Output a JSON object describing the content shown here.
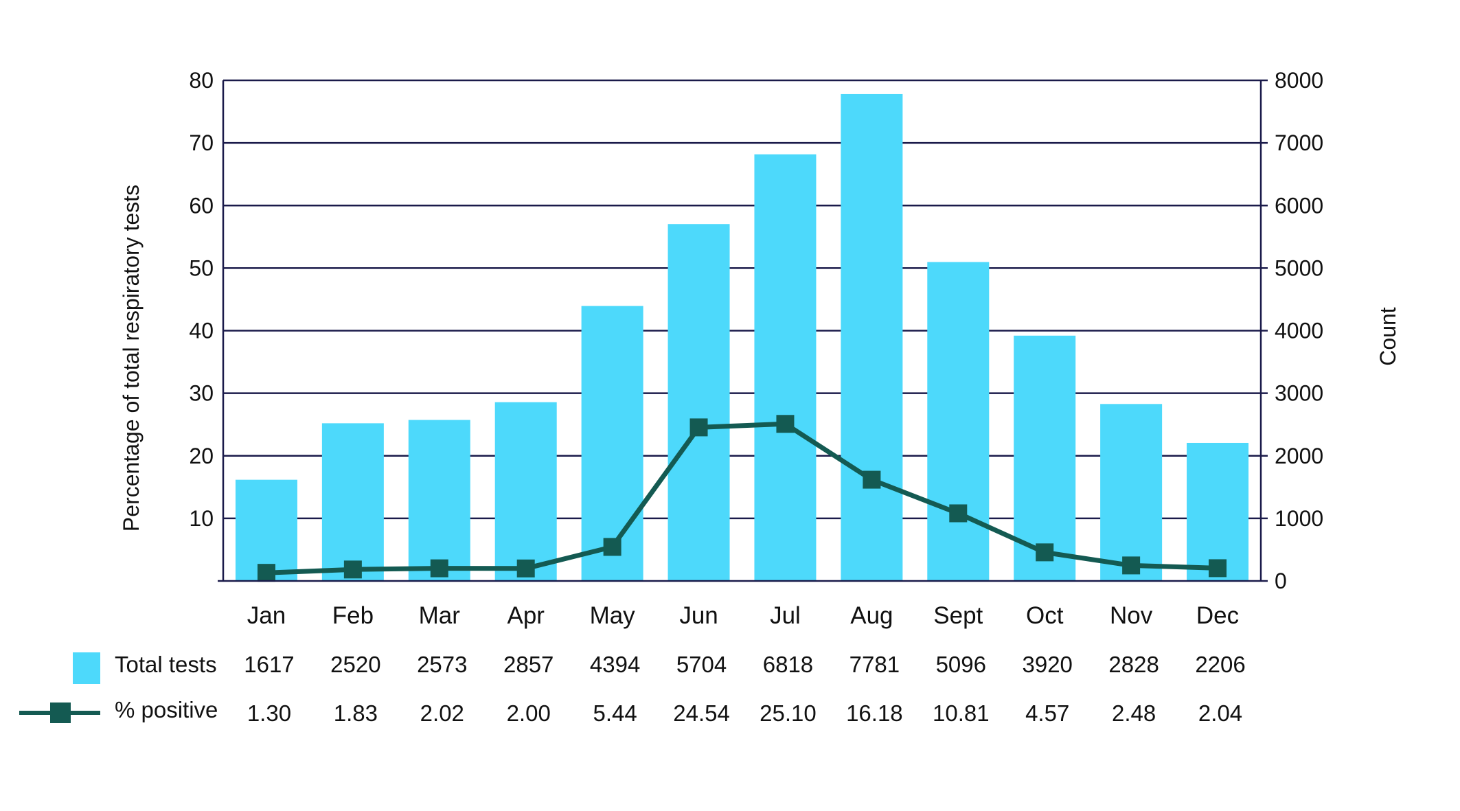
{
  "chart_data": {
    "type": "bar+line",
    "categories": [
      "Jan",
      "Feb",
      "Mar",
      "Apr",
      "May",
      "Jun",
      "Jul",
      "Aug",
      "Sept",
      "Oct",
      "Nov",
      "Dec"
    ],
    "series": [
      {
        "name": "Total tests",
        "type": "bar",
        "axis": "right",
        "values": [
          1617,
          2520,
          2573,
          2857,
          4394,
          5704,
          6818,
          7781,
          5096,
          3920,
          2828,
          2206
        ],
        "display": [
          "1617",
          "2520",
          "2573",
          "2857",
          "4394",
          "5704",
          "6818",
          "7781",
          "5096",
          "3920",
          "2828",
          "2206"
        ]
      },
      {
        "name": "% positive",
        "type": "line",
        "axis": "left",
        "values": [
          1.3,
          1.83,
          2.02,
          2.0,
          5.44,
          24.54,
          25.1,
          16.18,
          10.81,
          4.57,
          2.48,
          2.04
        ],
        "display": [
          "1.30",
          "1.83",
          "2.02",
          "2.00",
          "5.44",
          "24.54",
          "25.10",
          "16.18",
          "10.81",
          "4.57",
          "2.48",
          "2.04"
        ]
      }
    ],
    "ylabel": "Percentage of total respiratory tests",
    "y2label": "Count",
    "ylim": [
      0,
      80
    ],
    "y2lim": [
      0,
      8000
    ],
    "yticks": [
      "10",
      "20",
      "30",
      "40",
      "50",
      "60",
      "70",
      "80"
    ],
    "y2ticks": [
      "0",
      "1000",
      "2000",
      "3000",
      "4000",
      "5000",
      "6000",
      "7000",
      "8000"
    ],
    "grid": true,
    "legend": "data table below x-axis"
  },
  "colors": {
    "bar": "#4dd9fb",
    "line": "#145a52",
    "grid": "#1a1a4a",
    "text": "#111111"
  }
}
